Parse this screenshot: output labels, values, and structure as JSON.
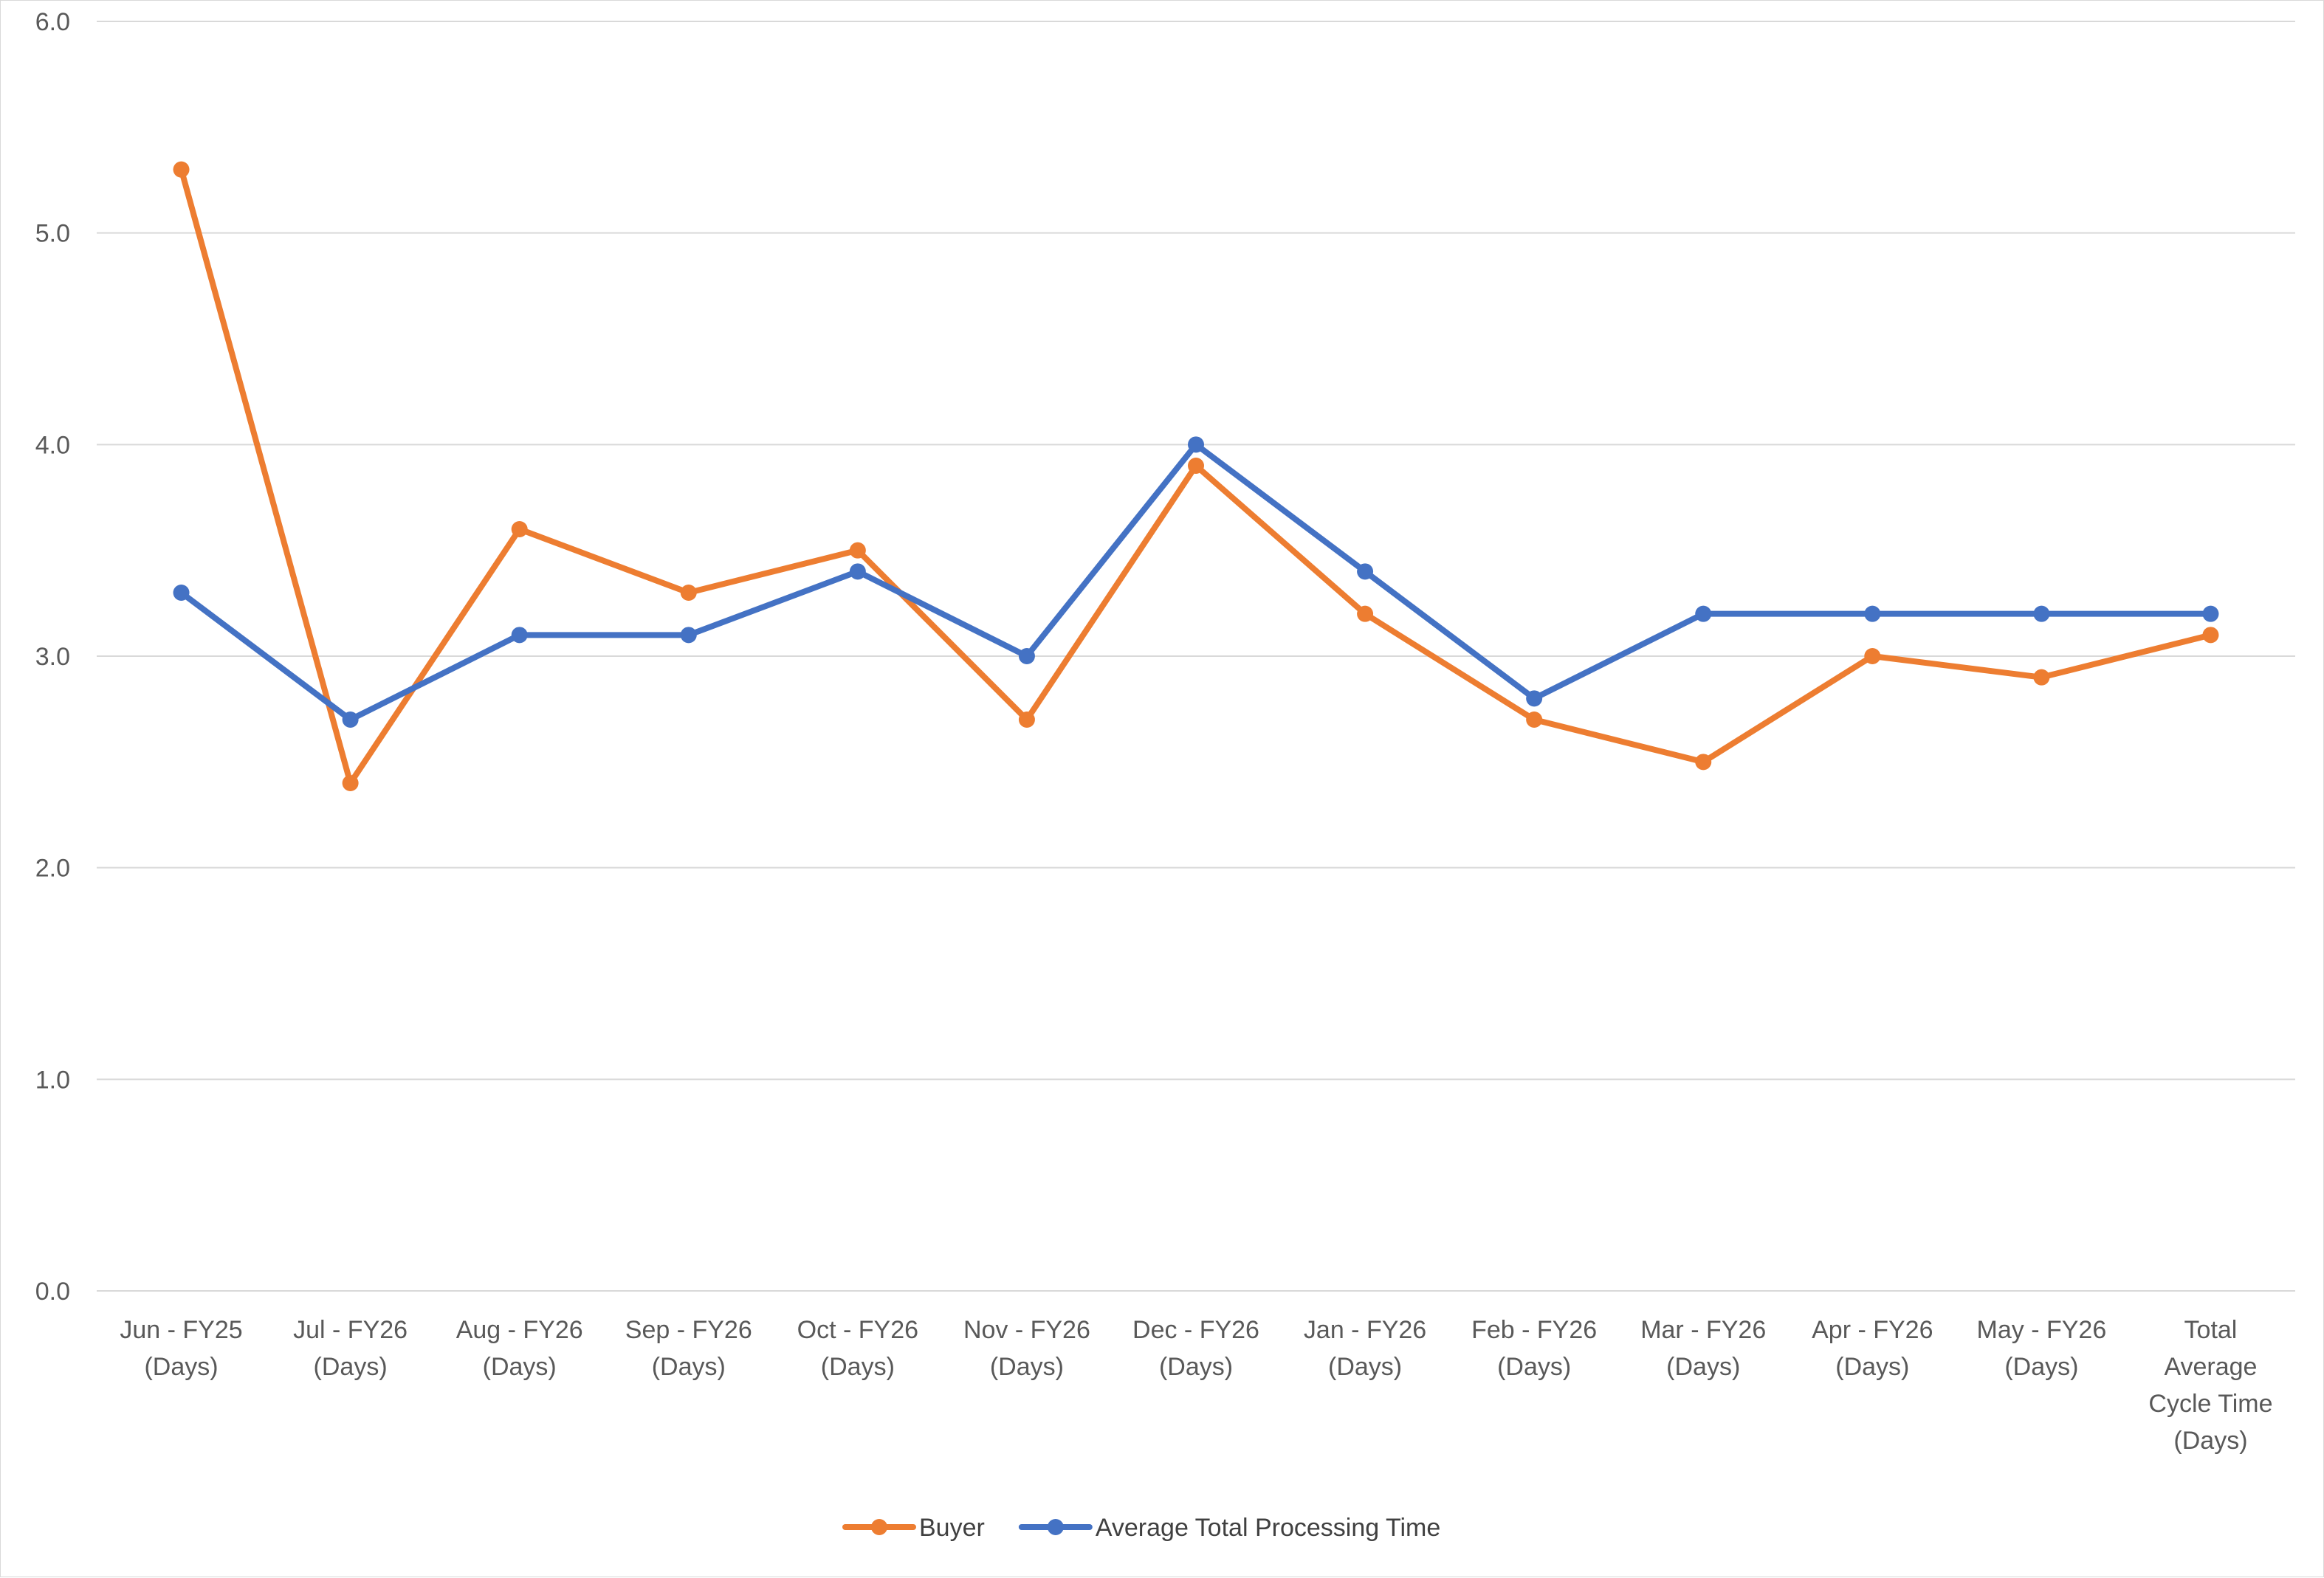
{
  "chart_data": {
    "type": "line",
    "title": "",
    "xlabel": "",
    "ylabel": "",
    "ylim": [
      0,
      6
    ],
    "yticks": [
      "0.0",
      "1.0",
      "2.0",
      "3.0",
      "4.0",
      "5.0",
      "6.0"
    ],
    "grid": true,
    "legend_position": "bottom",
    "categories": [
      [
        "Jun - FY25",
        "(Days)"
      ],
      [
        "Jul - FY26",
        "(Days)"
      ],
      [
        "Aug - FY26",
        "(Days)"
      ],
      [
        "Sep - FY26",
        "(Days)"
      ],
      [
        "Oct - FY26",
        "(Days)"
      ],
      [
        "Nov - FY26",
        "(Days)"
      ],
      [
        "Dec - FY26",
        "(Days)"
      ],
      [
        "Jan - FY26",
        "(Days)"
      ],
      [
        "Feb - FY26",
        "(Days)"
      ],
      [
        "Mar - FY26",
        "(Days)"
      ],
      [
        "Apr - FY26",
        "(Days)"
      ],
      [
        "May - FY26",
        "(Days)"
      ],
      [
        "Total",
        "Average",
        "Cycle Time",
        "(Days)"
      ]
    ],
    "series": [
      {
        "name": "Buyer",
        "color": "#ED7D31",
        "values": [
          5.3,
          2.4,
          3.6,
          3.3,
          3.5,
          2.7,
          3.9,
          3.2,
          2.7,
          2.5,
          3.0,
          2.9,
          3.1
        ]
      },
      {
        "name": "Average Total Processing Time",
        "color": "#4472C4",
        "values": [
          3.3,
          2.7,
          3.1,
          3.1,
          3.4,
          3.0,
          4.0,
          3.4,
          2.8,
          3.2,
          3.2,
          3.2,
          3.2
        ]
      }
    ]
  }
}
